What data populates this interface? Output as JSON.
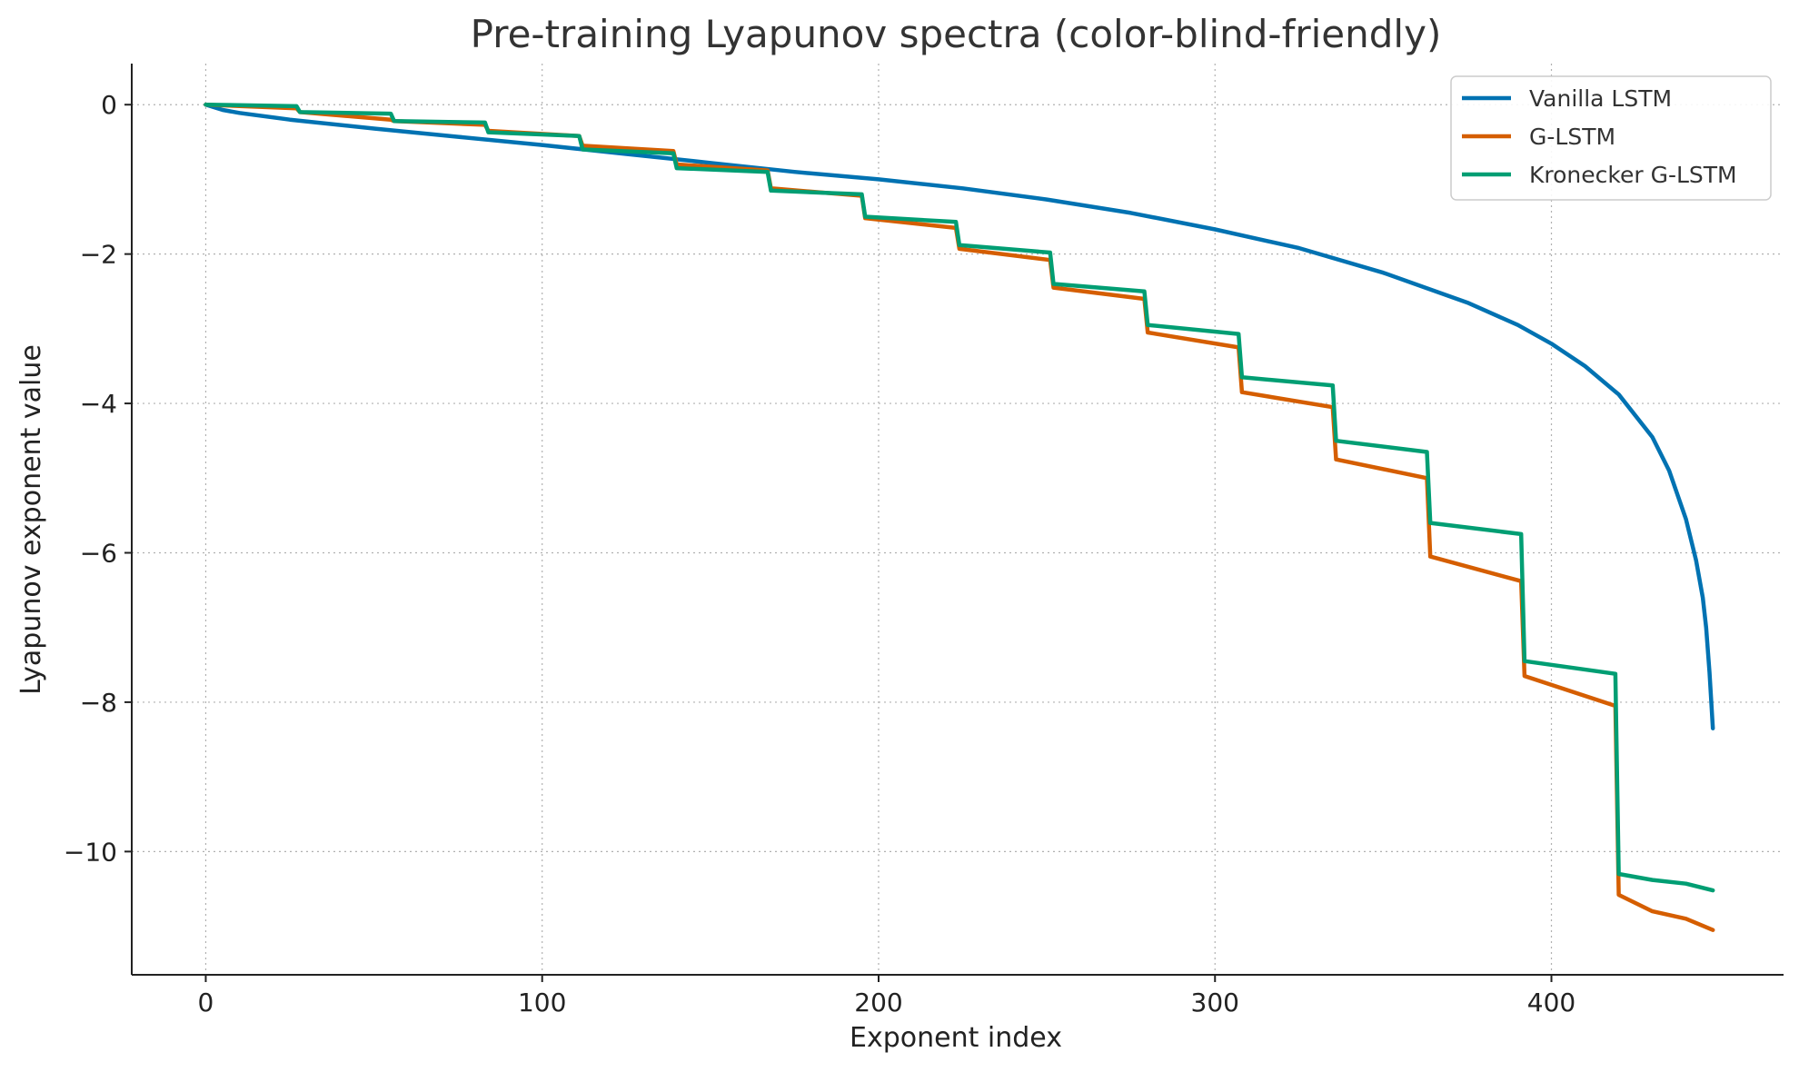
{
  "chart_data": {
    "type": "line",
    "title": "Pre-training Lyapunov spectra (color-blind-friendly)",
    "xlabel": "Exponent index",
    "ylabel": "Lyapunov exponent value",
    "xlim": [
      -22,
      469
    ],
    "ylim": [
      -11.65,
      0.55
    ],
    "xticks": [
      0,
      100,
      200,
      300,
      400
    ],
    "yticks": [
      0,
      -2,
      -4,
      -6,
      -8,
      -10
    ],
    "grid": true,
    "legend_position": "top-right",
    "series": [
      {
        "name": "Vanilla LSTM",
        "color": "#0072b2",
        "x": [
          0,
          5,
          10,
          25,
          50,
          75,
          100,
          125,
          150,
          175,
          200,
          225,
          250,
          275,
          300,
          325,
          350,
          375,
          390,
          400,
          410,
          420,
          430,
          435,
          440,
          443,
          445,
          446,
          447,
          448
        ],
        "y": [
          0,
          -0.07,
          -0.11,
          -0.2,
          -0.32,
          -0.43,
          -0.54,
          -0.66,
          -0.78,
          -0.9,
          -1.0,
          -1.12,
          -1.27,
          -1.45,
          -1.67,
          -1.92,
          -2.25,
          -2.65,
          -2.95,
          -3.2,
          -3.5,
          -3.88,
          -4.45,
          -4.9,
          -5.55,
          -6.1,
          -6.6,
          -7.0,
          -7.6,
          -8.35
        ]
      },
      {
        "name": "G-LSTM",
        "color": "#d55e00",
        "x": [
          0,
          27,
          28,
          55,
          56,
          83,
          84,
          111,
          112,
          139,
          140,
          167,
          168,
          195,
          196,
          223,
          224,
          251,
          252,
          279,
          280,
          307,
          308,
          335,
          336,
          363,
          364,
          391,
          392,
          419,
          420,
          430,
          440,
          448
        ],
        "y": [
          0,
          -0.05,
          -0.1,
          -0.2,
          -0.22,
          -0.27,
          -0.35,
          -0.42,
          -0.55,
          -0.62,
          -0.8,
          -0.88,
          -1.12,
          -1.22,
          -1.52,
          -1.65,
          -1.93,
          -2.08,
          -2.45,
          -2.6,
          -3.05,
          -3.25,
          -3.85,
          -4.05,
          -4.75,
          -5.0,
          -6.05,
          -6.38,
          -7.65,
          -8.05,
          -10.58,
          -10.8,
          -10.9,
          -11.05
        ]
      },
      {
        "name": "Kronecker G-LSTM",
        "color": "#009e73",
        "x": [
          0,
          27,
          28,
          55,
          56,
          83,
          84,
          111,
          112,
          139,
          140,
          167,
          168,
          195,
          196,
          223,
          224,
          251,
          252,
          279,
          280,
          307,
          308,
          335,
          336,
          363,
          364,
          391,
          392,
          419,
          420,
          430,
          440,
          448
        ],
        "y": [
          0,
          -0.02,
          -0.1,
          -0.12,
          -0.22,
          -0.24,
          -0.37,
          -0.42,
          -0.6,
          -0.65,
          -0.85,
          -0.9,
          -1.15,
          -1.2,
          -1.5,
          -1.57,
          -1.88,
          -1.98,
          -2.4,
          -2.5,
          -2.95,
          -3.07,
          -3.65,
          -3.76,
          -4.5,
          -4.65,
          -5.6,
          -5.75,
          -7.45,
          -7.62,
          -10.3,
          -10.38,
          -10.43,
          -10.52
        ]
      }
    ]
  }
}
